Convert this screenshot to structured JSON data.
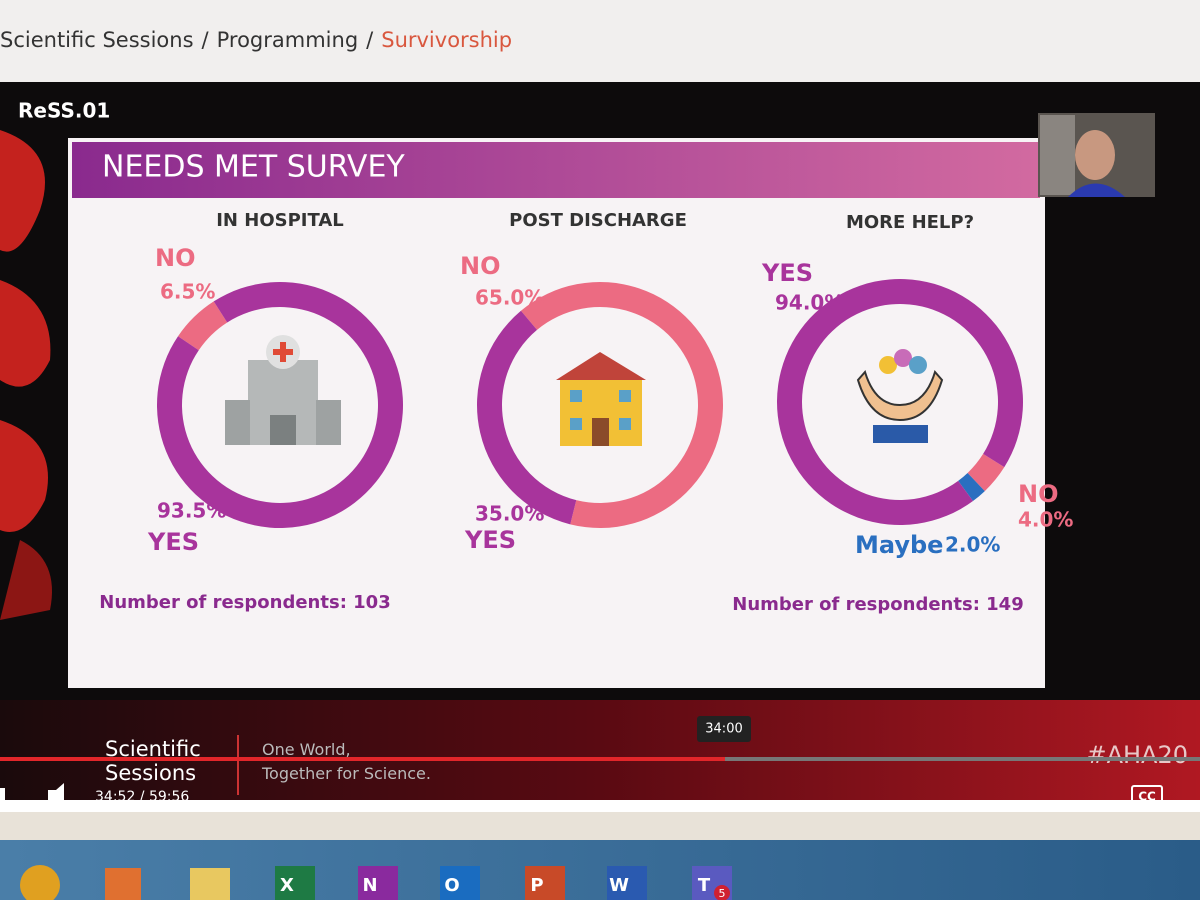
{
  "breadcrumb": {
    "items": [
      "Scientific Sessions",
      "Programming",
      "Survivorship"
    ],
    "separator": "/"
  },
  "video": {
    "title": "ReSS.01",
    "tooltip": "34:00",
    "time": "34:52 / 59:56",
    "captions": "CC",
    "branding": {
      "name": "Scientific Sessions",
      "tagline": "One World, Together for Science.",
      "hashtag": "#AHA20"
    }
  },
  "slide": {
    "title": "NEEDS MET SURVEY",
    "charts": [
      {
        "title": "IN HOSPITAL",
        "respondents": "Number of respondents: 103",
        "segments": [
          {
            "label": "NO",
            "value": 6.5,
            "value_label": "6.5%",
            "color": "#ec6b82"
          },
          {
            "label": "YES",
            "value": 93.5,
            "value_label": "93.5%",
            "color": "#a8349c"
          }
        ]
      },
      {
        "title": "POST DISCHARGE",
        "segments": [
          {
            "label": "NO",
            "value": 65.0,
            "value_label": "65.0%",
            "color": "#ec6b82"
          },
          {
            "label": "YES",
            "value": 35.0,
            "value_label": "35.0%",
            "color": "#a8349c"
          }
        ]
      },
      {
        "title": "MORE HELP?",
        "respondents": "Number of respondents: 149",
        "segments": [
          {
            "label": "NO",
            "value": 4.0,
            "value_label": "4.0%",
            "color": "#ec6b82"
          },
          {
            "label": "Maybe",
            "value": 2.0,
            "value_label": "2.0%",
            "color": "#2a6fc0"
          },
          {
            "label": "YES",
            "value": 94.0,
            "value_label": "94.0%",
            "color": "#a8349c"
          }
        ]
      }
    ]
  },
  "taskbar": {
    "apps": [
      "X",
      "N",
      "O",
      "P",
      "W",
      "T"
    ],
    "badge": "5"
  }
}
